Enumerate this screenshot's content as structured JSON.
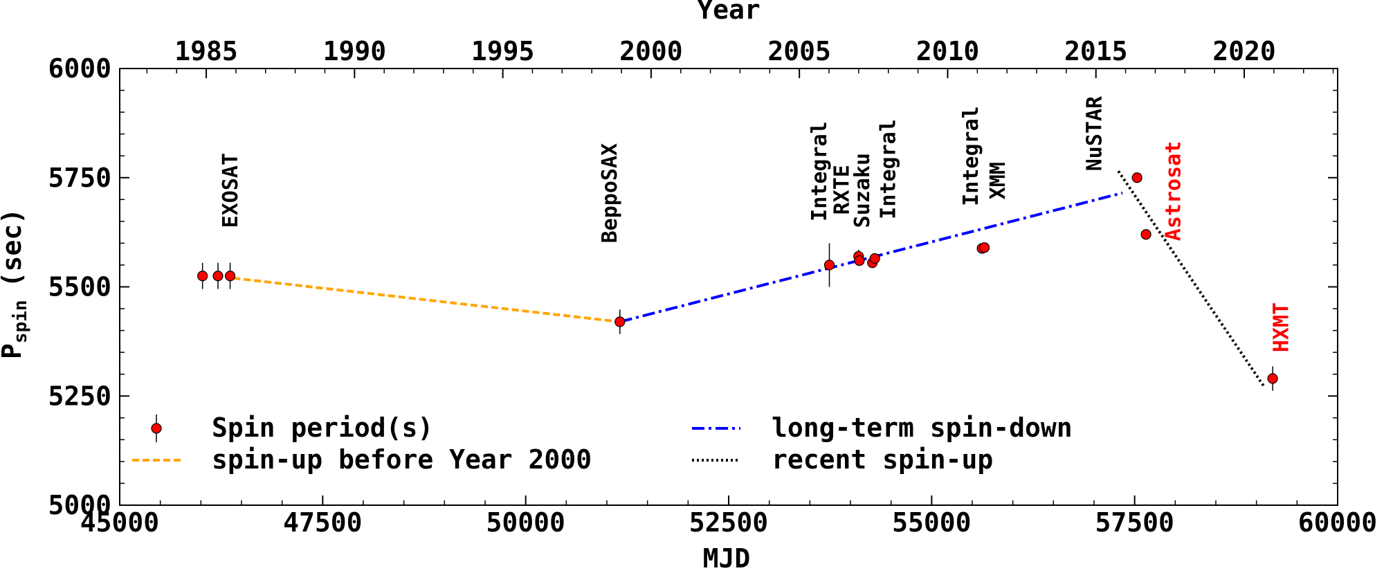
{
  "chart_data": {
    "type": "scatter",
    "xlabel": "MJD",
    "ylabel_main": "P",
    "ylabel_sub": "spin",
    "ylabel_unit": "(sec)",
    "x2label": "Year",
    "xlim": [
      45000,
      60000
    ],
    "ylim": [
      5000,
      6000
    ],
    "xticks": [
      45000,
      47500,
      50000,
      52500,
      55000,
      57500,
      60000
    ],
    "xtick_labels": [
      "45000",
      "47500",
      "50000",
      "52500",
      "55000",
      "57500",
      "60000"
    ],
    "yticks": [
      5000,
      5250,
      5500,
      5750,
      6000
    ],
    "ytick_labels": [
      "5000",
      "5250",
      "5500",
      "5750",
      "6000"
    ],
    "year_ticks": [
      1985,
      1990,
      1995,
      2000,
      2005,
      2010,
      2015,
      2020
    ],
    "year_tick_labels": [
      "1985",
      "1990",
      "1995",
      "2000",
      "2005",
      "2010",
      "2015",
      "2020"
    ],
    "grid": false,
    "legend_position": "bottom-left",
    "points": {
      "name": "Spin period(s)",
      "color": "#ff0000",
      "x": [
        46020,
        46210,
        46360,
        51160,
        53740,
        54100,
        54110,
        54270,
        54300,
        55620,
        55650,
        57530,
        57640,
        59200
      ],
      "y": [
        5525,
        5525,
        5525,
        5420,
        5550,
        5570,
        5560,
        5555,
        5565,
        5588,
        5590,
        5750,
        5620,
        5290
      ],
      "err": [
        30,
        30,
        30,
        28,
        50,
        15,
        10,
        10,
        10,
        8,
        8,
        5,
        5,
        28
      ]
    },
    "lines": [
      {
        "name": "spin-up before Year 2000",
        "style": "dashed",
        "color": "#ffa500",
        "x": [
          46400,
          51160
        ],
        "y": [
          5520,
          5420
        ]
      },
      {
        "name": "long-term spin-down",
        "style": "dashdot",
        "color": "#0000ff",
        "x": [
          51160,
          57350
        ],
        "y": [
          5420,
          5715
        ]
      },
      {
        "name": "recent spin-up",
        "style": "dotted",
        "color": "#000000",
        "x": [
          57300,
          59100
        ],
        "y": [
          5765,
          5270
        ]
      }
    ],
    "annotations": [
      {
        "text": "EXOSAT",
        "x": 46450,
        "y": 5635,
        "color": "#000000"
      },
      {
        "text": "BeppoSAX",
        "x": 51120,
        "y": 5600,
        "color": "#000000"
      },
      {
        "text": "Integral",
        "x": 53700,
        "y": 5650,
        "color": "#000000"
      },
      {
        "text": "RXTE",
        "x": 53980,
        "y": 5665,
        "color": "#000000"
      },
      {
        "text": "Suzaku",
        "x": 54230,
        "y": 5635,
        "color": "#000000"
      },
      {
        "text": "Integral",
        "x": 54550,
        "y": 5655,
        "color": "#000000"
      },
      {
        "text": "Integral",
        "x": 55570,
        "y": 5685,
        "color": "#000000"
      },
      {
        "text": "XMM",
        "x": 55900,
        "y": 5700,
        "color": "#000000"
      },
      {
        "text": "NuSTAR",
        "x": 57090,
        "y": 5765,
        "color": "#000000"
      },
      {
        "text": "Astrosat",
        "x": 58060,
        "y": 5605,
        "color": "#ff0000"
      },
      {
        "text": "HXMT",
        "x": 59390,
        "y": 5350,
        "color": "#ff0000"
      }
    ],
    "legend": [
      {
        "label": "Spin period(s)",
        "kind": "point"
      },
      {
        "label": "spin-up before Year 2000",
        "kind": "dashed"
      },
      {
        "label": "long-term spin-down",
        "kind": "dashdot"
      },
      {
        "label": "recent spin-up",
        "kind": "dotted"
      }
    ]
  }
}
